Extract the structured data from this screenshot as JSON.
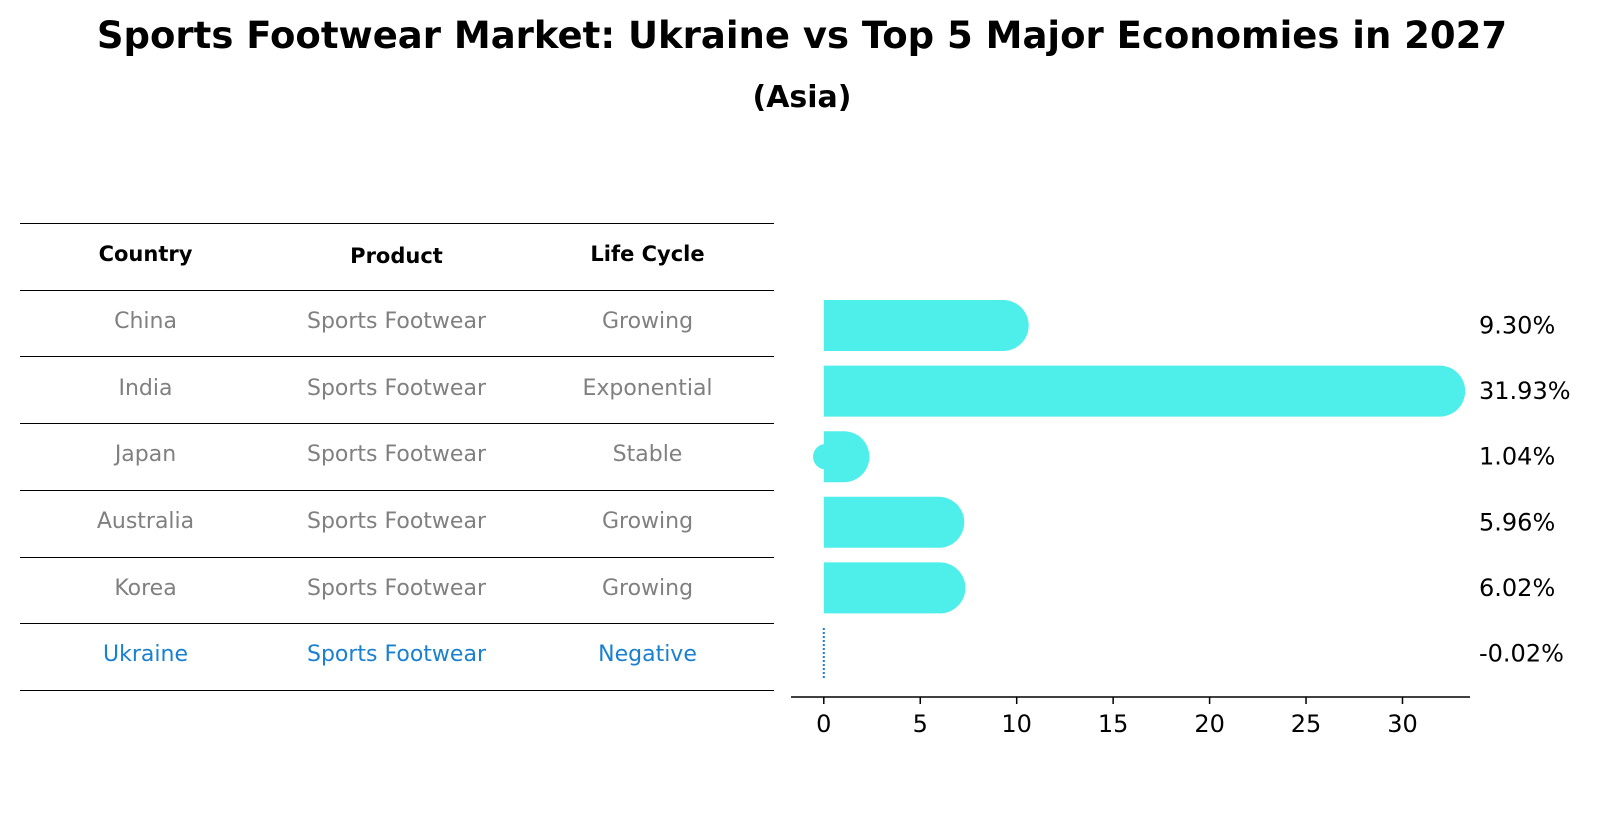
{
  "title": "Sports Footwear Market: Ukraine vs Top 5 Major Economies in 2027",
  "subtitle": "(Asia)",
  "table": {
    "headers": [
      "Country",
      "Product",
      "Life Cycle"
    ],
    "rows": [
      [
        "China",
        "Sports Footwear",
        "Growing"
      ],
      [
        "India",
        "Sports Footwear",
        "Exponential"
      ],
      [
        "Japan",
        "Sports Footwear",
        "Stable"
      ],
      [
        "Australia",
        "Sports Footwear",
        "Growing"
      ],
      [
        "Korea",
        "Sports Footwear",
        "Growing"
      ],
      [
        "Ukraine",
        "Sports Footwear",
        "Negative"
      ]
    ],
    "highlight_row": "Ukraine"
  },
  "colors": {
    "bar": "#4eeeea",
    "highlight": "#1a80d0",
    "muted_text": "#808080"
  },
  "chart_data": {
    "type": "bar",
    "orientation": "horizontal",
    "categories": [
      "China",
      "India",
      "Japan",
      "Australia",
      "Korea",
      "Ukraine"
    ],
    "values": [
      9.3,
      31.93,
      1.04,
      5.96,
      6.02,
      -0.02
    ],
    "value_labels": [
      "9.30%",
      "31.93%",
      "1.04%",
      "5.96%",
      "6.02%",
      "-0.02%"
    ],
    "xlim": [
      -1.7,
      33.5
    ],
    "xticks": [
      0,
      5,
      10,
      15,
      20,
      25,
      30
    ],
    "xlabel": "",
    "ylabel": "",
    "grid": false
  }
}
